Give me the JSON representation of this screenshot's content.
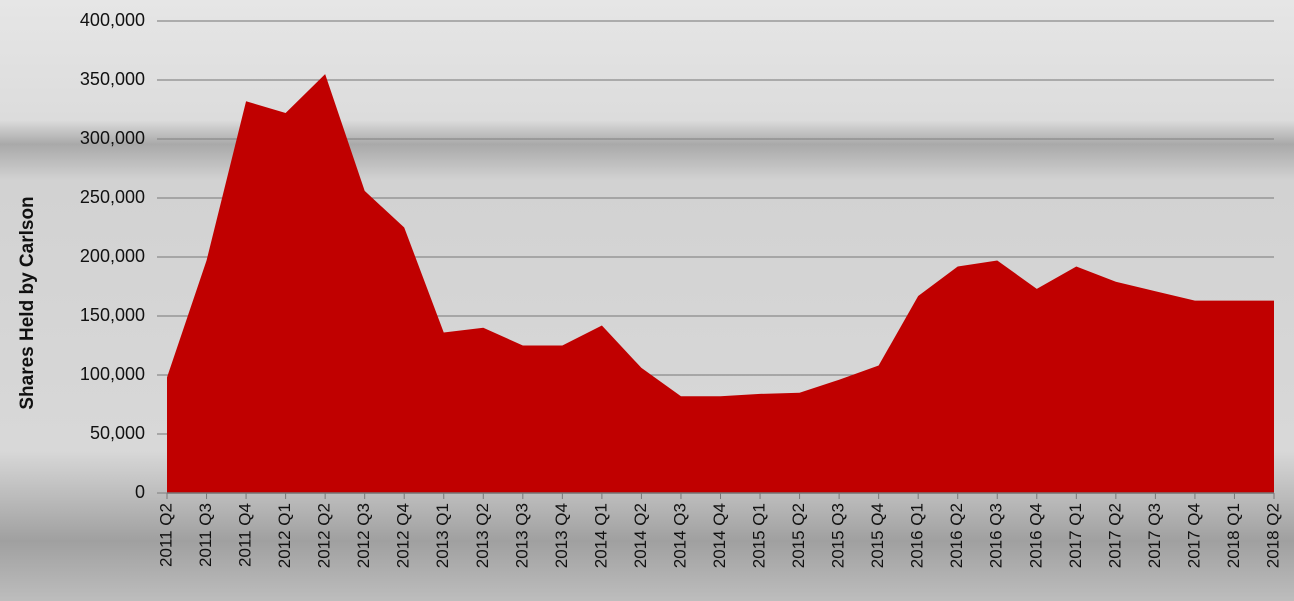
{
  "chart_data": {
    "type": "area",
    "y_label": "Shares Held by Carlson",
    "categories": [
      "2011 Q2",
      "2011 Q3",
      "2011 Q4",
      "2012 Q1",
      "2012 Q2",
      "2012 Q3",
      "2012 Q4",
      "2013 Q1",
      "2013 Q2",
      "2013 Q3",
      "2013 Q4",
      "2014 Q1",
      "2014 Q2",
      "2014 Q3",
      "2014 Q4",
      "2015 Q1",
      "2015 Q2",
      "2015 Q3",
      "2015 Q4",
      "2016 Q1",
      "2016 Q2",
      "2016 Q3",
      "2016 Q4",
      "2017 Q1",
      "2017 Q2",
      "2017 Q3",
      "2017 Q4",
      "2018 Q1",
      "2018 Q2"
    ],
    "values": [
      98000,
      197000,
      332000,
      322000,
      355000,
      256000,
      225000,
      136000,
      140000,
      125000,
      125000,
      142000,
      106000,
      82000,
      82000,
      84000,
      85000,
      96000,
      108000,
      167000,
      192000,
      197000,
      173000,
      192000,
      179000,
      171000,
      163000,
      163000,
      163000
    ],
    "color": "#c00000",
    "ylim": [
      0,
      400000
    ],
    "yticks": [
      0,
      {
        "value": 50000,
        "label": "50,000"
      },
      {
        "value": 100000,
        "label": "100,000"
      },
      {
        "value": 150000,
        "label": "150,000"
      },
      {
        "value": 200000,
        "label": "200,000"
      },
      {
        "value": 250000,
        "label": "250,000"
      },
      {
        "value": 300000,
        "label": "300,000"
      },
      {
        "value": 350000,
        "label": "350,000"
      },
      {
        "value": 400000,
        "label": "400,000"
      }
    ],
    "grid": true
  }
}
